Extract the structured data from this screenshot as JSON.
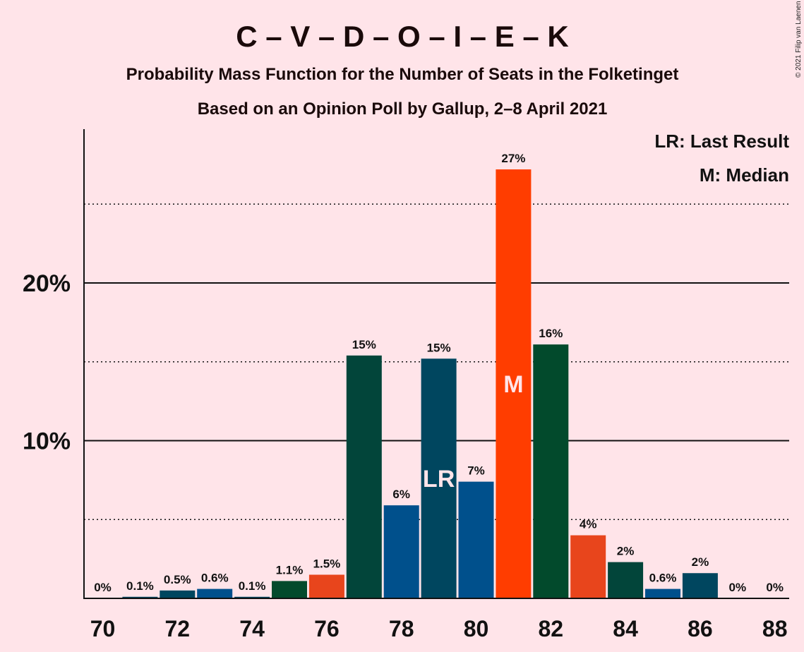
{
  "header": {
    "title": "C – V – D – O – I – E – K",
    "subtitle1": "Probability Mass Function for the Number of Seats in the Folketinget",
    "subtitle2": "Based on an Opinion Poll by Gallup, 2–8 April 2021",
    "copyright": "© 2021 Filip van Laenen"
  },
  "legend": {
    "lr": "LR: Last Result",
    "m": "M: Median"
  },
  "chart_data": {
    "type": "bar",
    "categories": [
      70,
      71,
      72,
      73,
      74,
      75,
      76,
      77,
      78,
      79,
      80,
      81,
      82,
      83,
      84,
      85,
      86,
      87,
      88
    ],
    "values": [
      0,
      0.1,
      0.5,
      0.6,
      0.1,
      1.1,
      1.5,
      15.4,
      5.9,
      15.2,
      7.4,
      27.2,
      16.1,
      4.0,
      2.3,
      0.6,
      1.6,
      0,
      0
    ],
    "labels": [
      "0%",
      "0.1%",
      "0.5%",
      "0.6%",
      "0.1%",
      "1.1%",
      "1.5%",
      "15%",
      "6%",
      "15%",
      "7%",
      "27%",
      "16%",
      "4%",
      "2%",
      "0.6%",
      "2%",
      "0%",
      "0%"
    ],
    "colors": [
      "#00465f",
      "#00465f",
      "#00465f",
      "#00508c",
      "#00465f",
      "#024a2c",
      "#e8451c",
      "#02453a",
      "#00508c",
      "#00465f",
      "#00508c",
      "#ff3d00",
      "#024a2c",
      "#e8451c",
      "#02453a",
      "#00508c",
      "#00465f",
      "#00465f",
      "#00465f"
    ],
    "x_ticks": [
      "70",
      "72",
      "74",
      "76",
      "78",
      "80",
      "82",
      "84",
      "86",
      "88"
    ],
    "y_ticks": [
      "10%",
      "20%"
    ],
    "ylim": [
      0,
      29
    ],
    "gridlines_major": [
      10,
      20
    ],
    "gridlines_minor": [
      5,
      15,
      25
    ],
    "last_result": {
      "seat": 79,
      "label": "LR"
    },
    "median": {
      "seat": 81,
      "label": "M"
    }
  }
}
